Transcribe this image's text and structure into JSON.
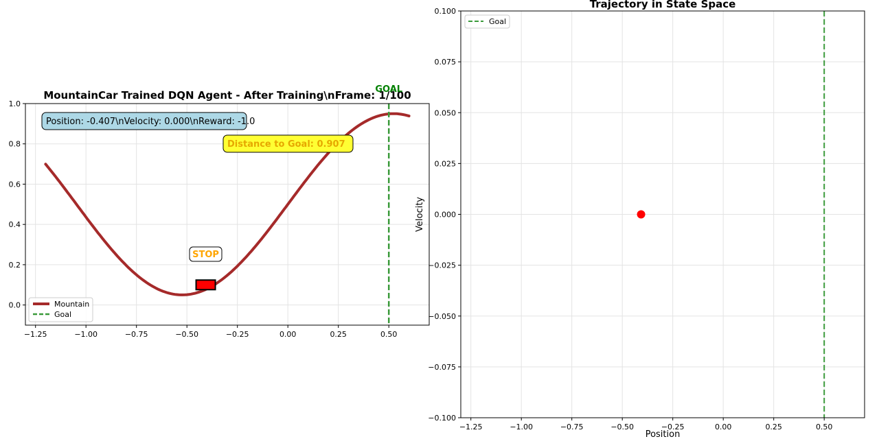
{
  "colors": {
    "mountain": "#a52a2a",
    "goal": "#3a9a3a",
    "goal_label": "#008000",
    "car": "#ff0000",
    "point": "#ff0000",
    "info_box": "#add8e6",
    "dist_box": "#ffff33",
    "dist_text": "#e6a800",
    "stop_text": "#ffa500",
    "grid": "#e3e3e3"
  },
  "chart_data": [
    {
      "type": "line",
      "title": "MountainCar Trained DQN Agent - After Training\\nFrame: 1/100",
      "xlim": [
        -1.3,
        0.7
      ],
      "ylim": [
        -0.1,
        1.0
      ],
      "xticks": [
        -1.25,
        -1.0,
        -0.75,
        -0.5,
        -0.25,
        0.0,
        0.25,
        0.5
      ],
      "xtick_labels": [
        "−1.25",
        "−1.00",
        "−0.75",
        "−0.50",
        "−0.25",
        "0.00",
        "0.25",
        "0.50"
      ],
      "yticks": [
        0.0,
        0.2,
        0.4,
        0.6,
        0.8,
        1.0
      ],
      "ytick_labels": [
        "0.0",
        "0.2",
        "0.4",
        "0.6",
        "0.8",
        "1.0"
      ],
      "grid": true,
      "legend": "lower-left",
      "series": [
        {
          "name": "Mountain",
          "function": "0.45*sin(3x)+0.5",
          "x_range": [
            -1.2,
            0.6
          ]
        },
        {
          "name": "Goal",
          "x": 0.5,
          "style": "dashed-vertical"
        }
      ],
      "car": {
        "position": -0.407,
        "height": 0.1
      },
      "annotations": {
        "info": "Position: -0.407\\nVelocity: 0.000\\nReward: -1.0",
        "distance": "Distance to Goal: 0.907",
        "action": "STOP",
        "goal": "GOAL"
      }
    },
    {
      "type": "scatter",
      "title": "Trajectory in State Space",
      "xlabel": "Position",
      "ylabel": "Velocity",
      "xlim": [
        -1.3,
        0.7
      ],
      "ylim": [
        -0.1,
        0.1
      ],
      "xticks": [
        -1.25,
        -1.0,
        -0.75,
        -0.5,
        -0.25,
        0.0,
        0.25,
        0.5
      ],
      "xtick_labels": [
        "−1.25",
        "−1.00",
        "−0.75",
        "−0.50",
        "−0.25",
        "0.00",
        "0.25",
        "0.50"
      ],
      "yticks": [
        -0.1,
        -0.075,
        -0.05,
        -0.025,
        0.0,
        0.025,
        0.05,
        0.075,
        0.1
      ],
      "ytick_labels": [
        "−0.100",
        "−0.075",
        "−0.050",
        "−0.025",
        "0.000",
        "0.025",
        "0.050",
        "0.075",
        "0.100"
      ],
      "grid": true,
      "legend": "upper-left",
      "series": [
        {
          "name": "Goal",
          "x": 0.5,
          "style": "dashed-vertical"
        }
      ],
      "points": [
        {
          "x": -0.407,
          "y": 0.0
        }
      ]
    }
  ]
}
